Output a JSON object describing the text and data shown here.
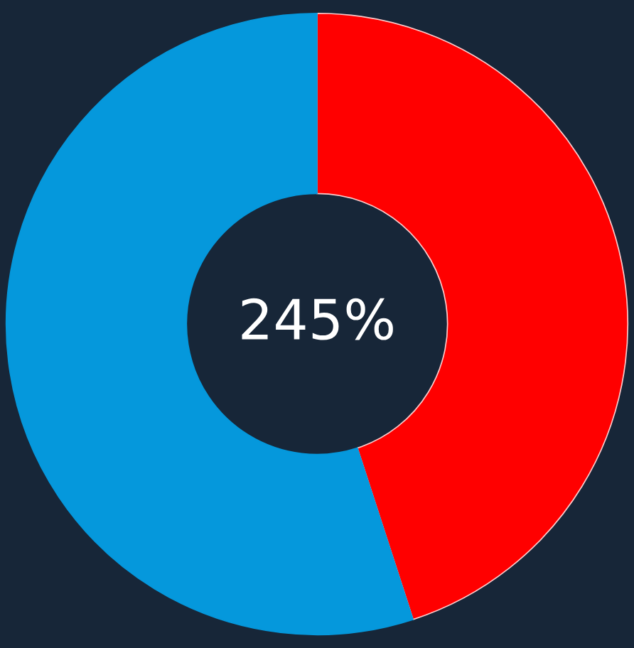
{
  "chart_data": {
    "type": "donut",
    "categories": [
      null,
      null
    ],
    "values": [
      45,
      55
    ],
    "colors": [
      "#ff0000",
      "#0598dc"
    ],
    "annotations": [
      "245%"
    ]
  }
}
